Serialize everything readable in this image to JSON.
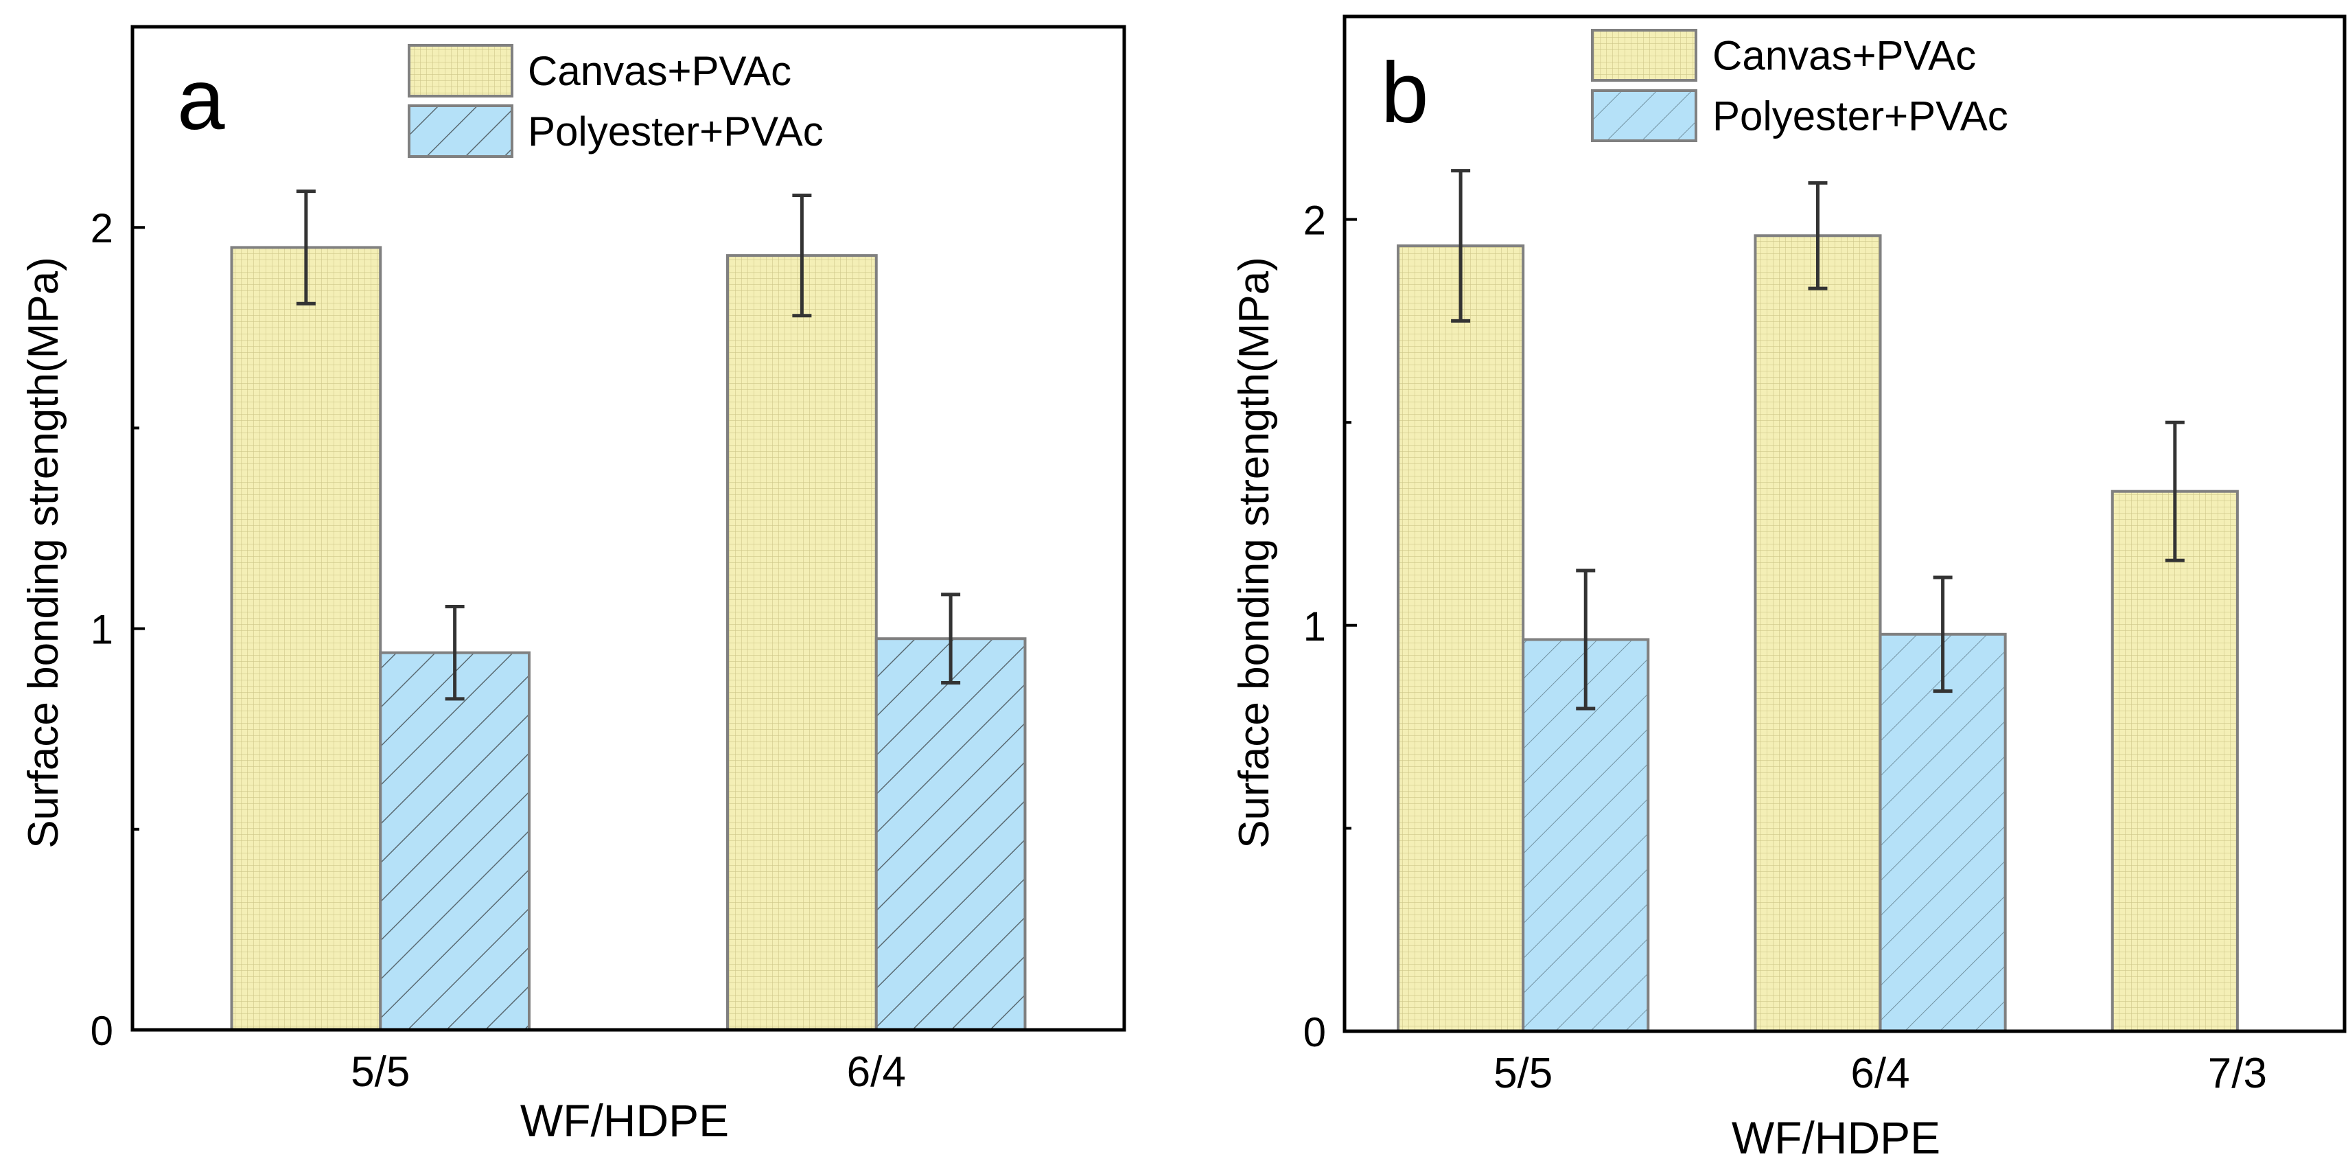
{
  "chart_data": [
    {
      "type": "bar",
      "panel_label": "a",
      "categories": [
        "5/5",
        "6/4"
      ],
      "xlabel": "WF/HDPE",
      "ylabel": "Surface bonding strength(MPa)",
      "ylim": [
        0,
        2.5
      ],
      "xlim": [
        0.5,
        2.5
      ],
      "yticks": [
        0,
        1,
        2
      ],
      "yticks_minor": [
        0.5,
        1.5
      ],
      "legend_position": "top-center",
      "series": [
        {
          "name": "Canvas+PVAc",
          "values": [
            1.95,
            1.93
          ],
          "errors": [
            0.14,
            0.15
          ],
          "color": "#f4efb6",
          "pattern": "grid"
        },
        {
          "name": "Polyester+PVAc",
          "values": [
            0.94,
            0.975
          ],
          "errors": [
            0.115,
            0.11
          ],
          "color": "#b5e1f8",
          "pattern": "diagonal"
        }
      ]
    },
    {
      "type": "bar",
      "panel_label": "b",
      "categories": [
        "5/5",
        "6/4",
        "7/3"
      ],
      "xlabel": "WF/HDPE",
      "ylabel": "Surface bonding strength(MPa)",
      "ylim": [
        0,
        2.5
      ],
      "xlim": [
        0.5,
        3.3
      ],
      "yticks": [
        0,
        1,
        2
      ],
      "yticks_minor": [
        0.5,
        1.5
      ],
      "legend_position": "top-center",
      "series": [
        {
          "name": "Canvas+PVAc",
          "values": [
            1.935,
            1.96,
            1.33
          ],
          "errors": [
            0.185,
            0.13,
            0.17
          ],
          "color": "#f4efb6",
          "pattern": "grid"
        },
        {
          "name": "Polyester+PVAc",
          "values": [
            0.965,
            0.978,
            null
          ],
          "errors": [
            0.17,
            0.14,
            null
          ],
          "color": "#b5e1f8",
          "pattern": "diagonal"
        }
      ]
    }
  ]
}
